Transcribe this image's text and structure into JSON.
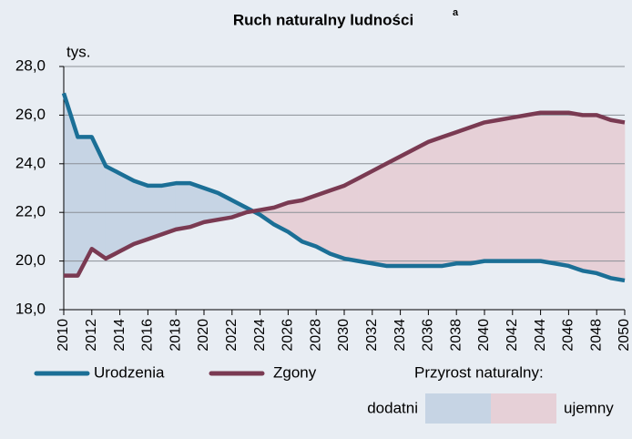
{
  "chart_data": {
    "type": "line",
    "title": "Ruch naturalny ludności",
    "title_note": "a",
    "y_label": "tys.",
    "x": [
      2010,
      2011,
      2012,
      2013,
      2014,
      2015,
      2016,
      2017,
      2018,
      2019,
      2020,
      2021,
      2022,
      2023,
      2024,
      2025,
      2026,
      2027,
      2028,
      2029,
      2030,
      2031,
      2032,
      2033,
      2034,
      2035,
      2036,
      2037,
      2038,
      2039,
      2040,
      2041,
      2042,
      2043,
      2044,
      2045,
      2046,
      2047,
      2048,
      2049,
      2050
    ],
    "series": [
      {
        "name": "Urodzenia",
        "color": "#1b6f96",
        "values": [
          26.9,
          25.1,
          25.1,
          23.9,
          23.6,
          23.3,
          23.1,
          23.1,
          23.2,
          23.2,
          23.0,
          22.8,
          22.5,
          22.2,
          21.9,
          21.5,
          21.2,
          20.8,
          20.6,
          20.3,
          20.1,
          20.0,
          19.9,
          19.8,
          19.8,
          19.8,
          19.8,
          19.8,
          19.9,
          19.9,
          20.0,
          20.0,
          20.0,
          20.0,
          20.0,
          19.9,
          19.8,
          19.6,
          19.5,
          19.3,
          19.2
        ]
      },
      {
        "name": "Zgony",
        "color": "#7a3a52",
        "values": [
          19.4,
          19.4,
          20.5,
          20.1,
          20.4,
          20.7,
          20.9,
          21.1,
          21.3,
          21.4,
          21.6,
          21.7,
          21.8,
          22.0,
          22.1,
          22.2,
          22.4,
          22.5,
          22.7,
          22.9,
          23.1,
          23.4,
          23.7,
          24.0,
          24.3,
          24.6,
          24.9,
          25.1,
          25.3,
          25.5,
          25.7,
          25.8,
          25.9,
          26.0,
          26.1,
          26.1,
          26.1,
          26.0,
          26.0,
          25.8,
          25.7
        ]
      }
    ],
    "fill_legend": {
      "title": "Przyrost naturalny:",
      "positive": {
        "label": "dodatni",
        "color": "#c6d4e4"
      },
      "negative": {
        "label": "ujemny",
        "color": "#e6d0d7"
      }
    },
    "xlim": [
      2010,
      2050
    ],
    "xticks": [
      2010,
      2012,
      2014,
      2016,
      2018,
      2020,
      2022,
      2024,
      2026,
      2028,
      2030,
      2032,
      2034,
      2036,
      2038,
      2040,
      2042,
      2044,
      2046,
      2048,
      2050
    ],
    "ylim": [
      18,
      28
    ],
    "yticks": [
      {
        "value": 18,
        "label": "18,0"
      },
      {
        "value": 20,
        "label": "20,0"
      },
      {
        "value": 22,
        "label": "22,0"
      },
      {
        "value": 24,
        "label": "24,0"
      },
      {
        "value": 26,
        "label": "26,0"
      },
      {
        "value": 28,
        "label": "28,0"
      }
    ],
    "grid": true
  }
}
